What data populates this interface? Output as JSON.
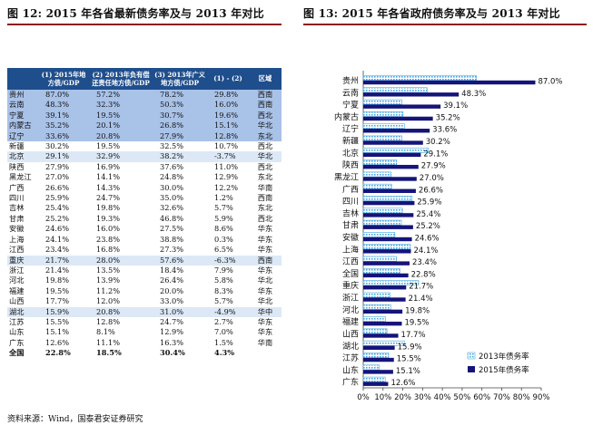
{
  "left": {
    "title": "图 12:  2015 年各省最新债务率及与 2013 年对比",
    "headers": [
      "",
      "(1) 2015年地方债/GDP",
      "(2) 2013年负有偿还责任地方债/GDP",
      "(3) 2013年广义地方债/GDP",
      "(1) - (2)",
      "区域"
    ],
    "rows": [
      [
        "贵州",
        "87.0%",
        "57.2%",
        "78.2%",
        "29.8%",
        "西南"
      ],
      [
        "云南",
        "48.3%",
        "32.3%",
        "50.3%",
        "16.0%",
        "西南"
      ],
      [
        "宁夏",
        "39.1%",
        "19.5%",
        "30.7%",
        "19.6%",
        "西北"
      ],
      [
        "内蒙古",
        "35.2%",
        "20.1%",
        "26.8%",
        "15.1%",
        "华北"
      ],
      [
        "辽宁",
        "33.6%",
        "20.8%",
        "27.9%",
        "12.8%",
        "东北"
      ],
      [
        "新疆",
        "30.2%",
        "19.5%",
        "32.5%",
        "10.7%",
        "西北"
      ],
      [
        "北京",
        "29.1%",
        "32.9%",
        "38.2%",
        "-3.7%",
        "华北"
      ],
      [
        "陕西",
        "27.9%",
        "16.9%",
        "37.6%",
        "11.0%",
        "西北"
      ],
      [
        "黑龙江",
        "27.0%",
        "14.1%",
        "24.8%",
        "12.9%",
        "东北"
      ],
      [
        "广西",
        "26.6%",
        "14.3%",
        "30.0%",
        "12.2%",
        "华南"
      ],
      [
        "四川",
        "25.9%",
        "24.7%",
        "35.0%",
        "1.2%",
        "西南"
      ],
      [
        "吉林",
        "25.4%",
        "19.8%",
        "32.6%",
        "5.7%",
        "东北"
      ],
      [
        "甘肃",
        "25.2%",
        "19.3%",
        "46.8%",
        "5.9%",
        "西北"
      ],
      [
        "安徽",
        "24.6%",
        "16.0%",
        "27.5%",
        "8.6%",
        "华东"
      ],
      [
        "上海",
        "24.1%",
        "23.8%",
        "38.8%",
        "0.3%",
        "华东"
      ],
      [
        "江西",
        "23.4%",
        "16.8%",
        "27.3%",
        "6.5%",
        "华东"
      ],
      [
        "重庆",
        "21.7%",
        "28.0%",
        "57.6%",
        "-6.3%",
        "西南"
      ],
      [
        "浙江",
        "21.4%",
        "13.5%",
        "18.4%",
        "7.9%",
        "华东"
      ],
      [
        "河北",
        "19.8%",
        "13.9%",
        "26.4%",
        "5.8%",
        "华北"
      ],
      [
        "福建",
        "19.5%",
        "11.2%",
        "20.0%",
        "8.3%",
        "华东"
      ],
      [
        "山西",
        "17.7%",
        "12.0%",
        "33.0%",
        "5.7%",
        "华北"
      ],
      [
        "湖北",
        "15.9%",
        "20.8%",
        "31.0%",
        "-4.9%",
        "华中"
      ],
      [
        "江苏",
        "15.5%",
        "12.8%",
        "24.7%",
        "2.7%",
        "华东"
      ],
      [
        "山东",
        "15.1%",
        "8.1%",
        "12.9%",
        "7.0%",
        "华东"
      ],
      [
        "广东",
        "12.6%",
        "11.1%",
        "16.3%",
        "1.5%",
        "华南"
      ],
      [
        "全国",
        "22.8%",
        "18.5%",
        "30.4%",
        "4.3%",
        ""
      ]
    ],
    "source": "资料来源：Wind，国泰君安证券研究"
  },
  "right": {
    "title": "图 13:  2015 年各省政府债务率及与 2013 年对比"
  },
  "colors": {
    "navy": "#14147a",
    "header": "#1f4e8c",
    "highlight": "#a9c2e8",
    "light": "#dce8f6",
    "pattern": "#4aa8e0",
    "rule": "#8b1a1a"
  },
  "chart_data": {
    "type": "bar",
    "orientation": "horizontal",
    "categories": [
      "贵州",
      "云南",
      "宁夏",
      "内蒙古",
      "辽宁",
      "新疆",
      "北京",
      "陕西",
      "黑龙江",
      "广西",
      "四川",
      "吉林",
      "甘肃",
      "安徽",
      "上海",
      "江西",
      "全国",
      "重庆",
      "浙江",
      "河北",
      "福建",
      "山西",
      "湖北",
      "江苏",
      "山东",
      "广东"
    ],
    "series": [
      {
        "name": "2013年债务率",
        "values": [
          57.2,
          32.3,
          19.5,
          20.1,
          20.8,
          19.5,
          32.9,
          16.9,
          14.1,
          14.3,
          24.7,
          19.8,
          19.3,
          16.0,
          23.8,
          16.8,
          18.5,
          28.0,
          13.5,
          13.9,
          11.2,
          12.0,
          20.8,
          12.8,
          8.1,
          11.1
        ]
      },
      {
        "name": "2015年债务率",
        "values": [
          87.0,
          48.3,
          39.1,
          35.2,
          33.6,
          30.2,
          29.1,
          27.9,
          27.0,
          26.6,
          25.9,
          25.4,
          25.2,
          24.6,
          24.1,
          23.4,
          22.8,
          21.7,
          21.4,
          19.8,
          19.5,
          17.7,
          15.9,
          15.5,
          15.1,
          12.6
        ]
      }
    ],
    "data_labels": [
      "87.0%",
      "48.3%",
      "39.1%",
      "35.2%",
      "33.6%",
      "30.2%",
      "29.1%",
      "27.9%",
      "27.0%",
      "26.6%",
      "25.9%",
      "25.4%",
      "25.2%",
      "24.6%",
      "24.1%",
      "23.4%",
      "22.8%",
      "21.7%",
      "21.4%",
      "19.8%",
      "19.5%",
      "17.7%",
      "15.9%",
      "15.5%",
      "15.1%",
      "12.6%"
    ],
    "xlim": [
      0,
      90
    ],
    "xticks": [
      "0%",
      "10%",
      "20%",
      "30%",
      "40%",
      "50%",
      "60%",
      "70%",
      "80%",
      "90%"
    ],
    "legend": "bottom-right"
  }
}
